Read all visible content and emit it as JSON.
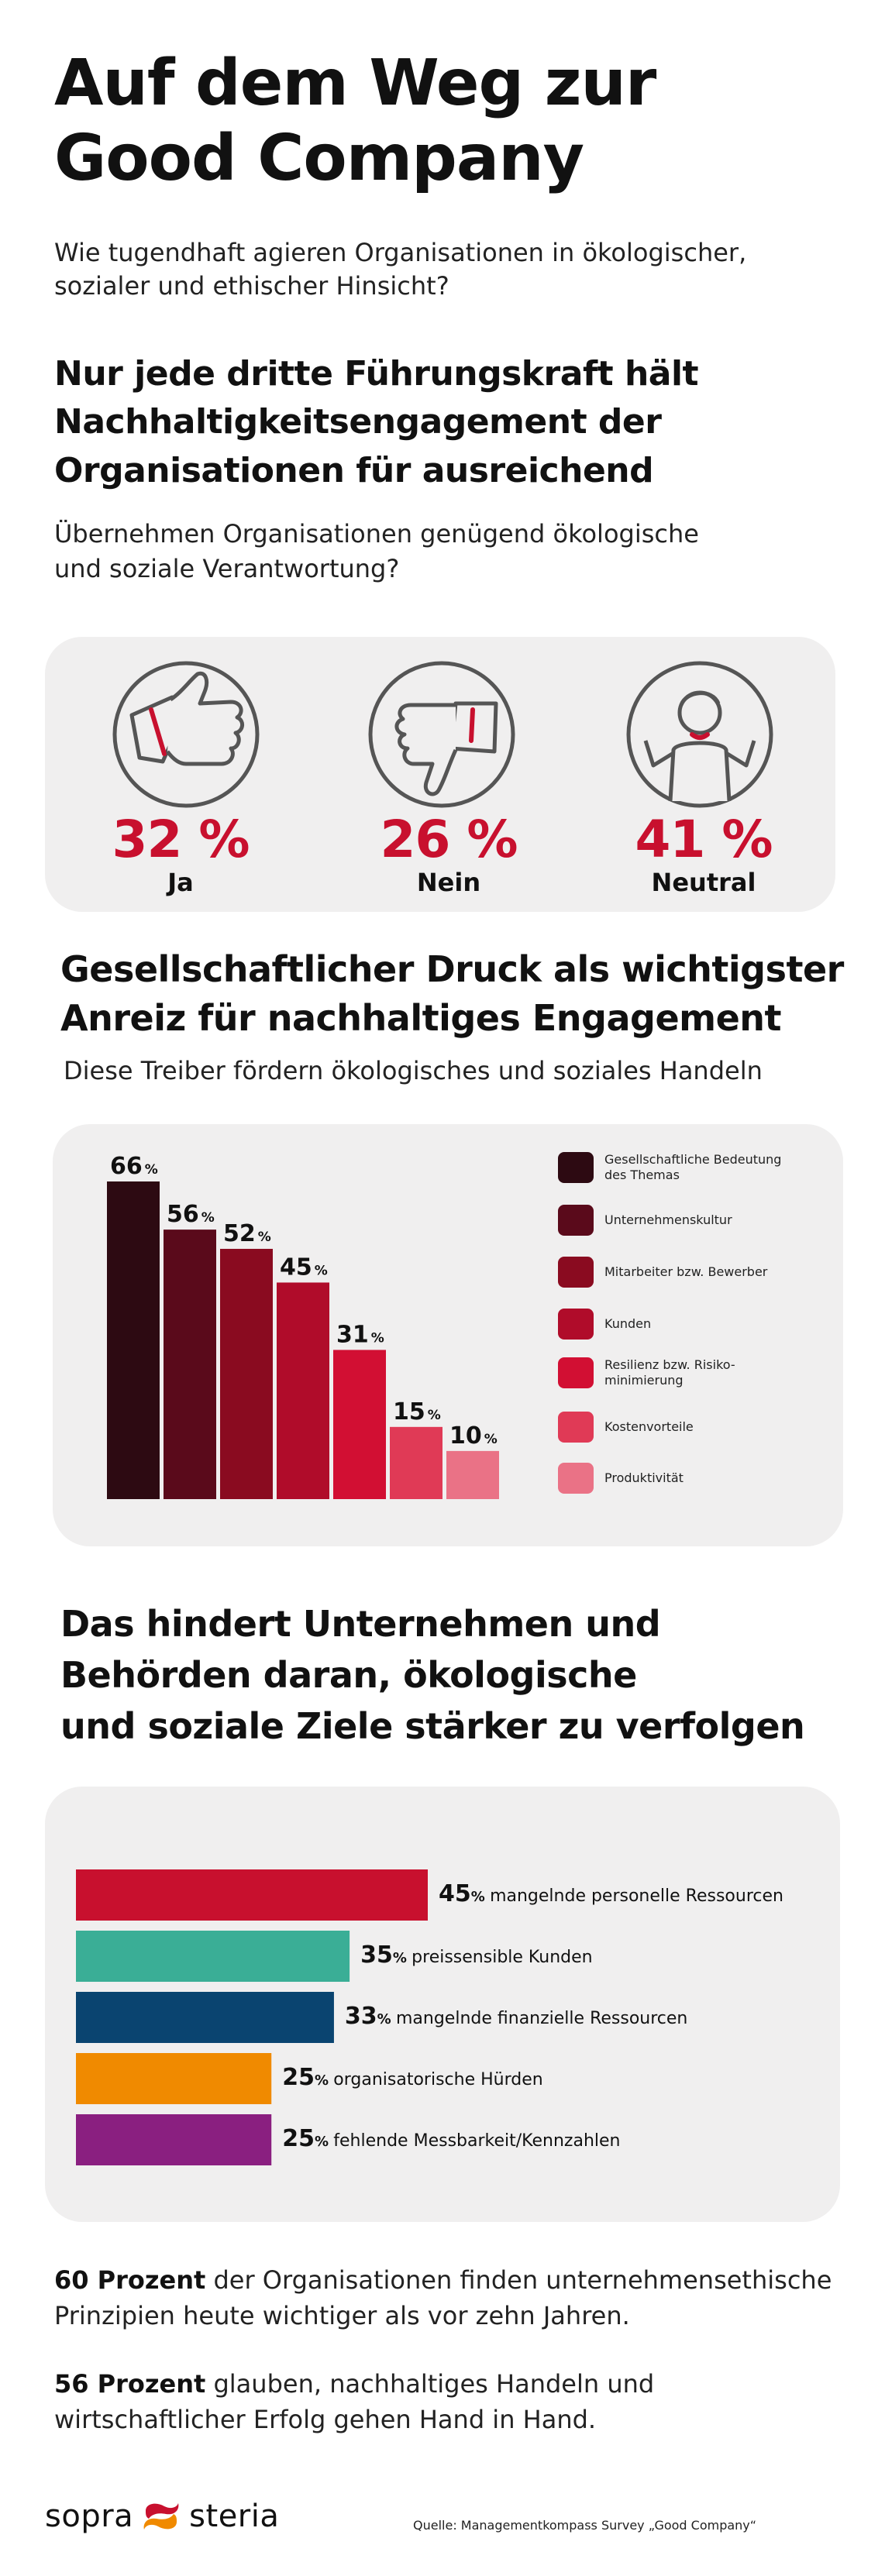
{
  "header": {
    "title_line1": "Auf dem Weg zur",
    "title_line2": "Good Company",
    "subtitle_line1": "Wie tugendhaft agieren Organisationen in ökologischer,",
    "subtitle_line2": "sozialer und ethischer Hinsicht?"
  },
  "section1": {
    "heading_line1": "Nur jede dritte Führungskraft hält",
    "heading_line2": "Nachhaltigkeitsengagement der",
    "heading_line3": "Organisationen für ausreichend",
    "question_line1": "Übernehmen Organisationen genügend ökologische",
    "question_line2": "und soziale Verantwortung?",
    "stats": [
      {
        "value": "32 %",
        "label": "Ja",
        "icon": "thumbs-up-icon"
      },
      {
        "value": "26 %",
        "label": "Nein",
        "icon": "thumbs-down-icon"
      },
      {
        "value": "41 %",
        "label": "Neutral",
        "icon": "shrugging-person-icon"
      }
    ]
  },
  "section2": {
    "heading_line1": "Gesellschaftlicher Druck als wichtigster",
    "heading_line2": "Anreiz für nachhaltiges Engagement",
    "subheading": "Diese Treiber fördern ökologisches und soziales Handeln"
  },
  "section3": {
    "heading_line1": "Das hindert Unternehmen und",
    "heading_line2": "Behörden daran, ökologische",
    "heading_line3": "und soziale Ziele stärker zu verfolgen"
  },
  "chart_data": [
    {
      "type": "bar",
      "categories": [
        "Gesellschaftliche Bedeutung des Themas",
        "Unternehmenskultur",
        "Mitarbeiter bzw. Bewerber",
        "Kunden",
        "Resilienz bzw. Risiko-minimierung",
        "Kostenvorteile",
        "Produktivität"
      ],
      "values": [
        66,
        56,
        52,
        45,
        31,
        15,
        10
      ],
      "value_labels": [
        "66",
        "56",
        "52",
        "45",
        "31",
        "15",
        "10"
      ],
      "unit": "%",
      "colors": [
        "#2d0a12",
        "#5a0a1b",
        "#8a0b20",
        "#b00c2a",
        "#d20f33",
        "#e03a56",
        "#ea7286"
      ],
      "legend_labels": [
        "Gesellschaftliche Bedeutung",
        "des Themas",
        "Unternehmenskultur",
        "Mitarbeiter bzw. Bewerber",
        "Kunden",
        "Resilienz bzw. Risiko-",
        "minimierung",
        "Kostenvorteile",
        "Produktivität"
      ],
      "legend": "right",
      "ylim": [
        0,
        66
      ]
    },
    {
      "type": "bar",
      "orientation": "horizontal",
      "categories": [
        "mangelnde personelle Ressourcen",
        "preissensible Kunden",
        "mangelnde finanzielle Ressourcen",
        "organisatorische Hürden",
        "fehlende Messbarkeit/Kennzahlen"
      ],
      "values": [
        45,
        35,
        33,
        25,
        25
      ],
      "value_labels": [
        "45",
        "35",
        "33",
        "25",
        "25"
      ],
      "unit": "%",
      "colors": [
        "#c8102e",
        "#3aae96",
        "#0a4470",
        "#f08a00",
        "#8a1f80"
      ],
      "xlim": [
        0,
        45
      ]
    }
  ],
  "notes": {
    "n1_bold": "60 Prozent",
    "n1_rest": " der Organisationen finden unternehmensethische",
    "n1_line2": "Prinzipien heute wichtiger als vor zehn Jahren.",
    "n2_bold": "56 Prozent",
    "n2_rest": " glauben, nachhaltiges Handeln und",
    "n2_line2": "wirtschaftlicher Erfolg gehen Hand in Hand."
  },
  "footer": {
    "logo_left": "sopra",
    "logo_right": "steria",
    "source": "Quelle: Managementkompass Survey „Good Company“"
  },
  "colors": {
    "accent": "#c8102e",
    "panel": "#f0efef"
  }
}
